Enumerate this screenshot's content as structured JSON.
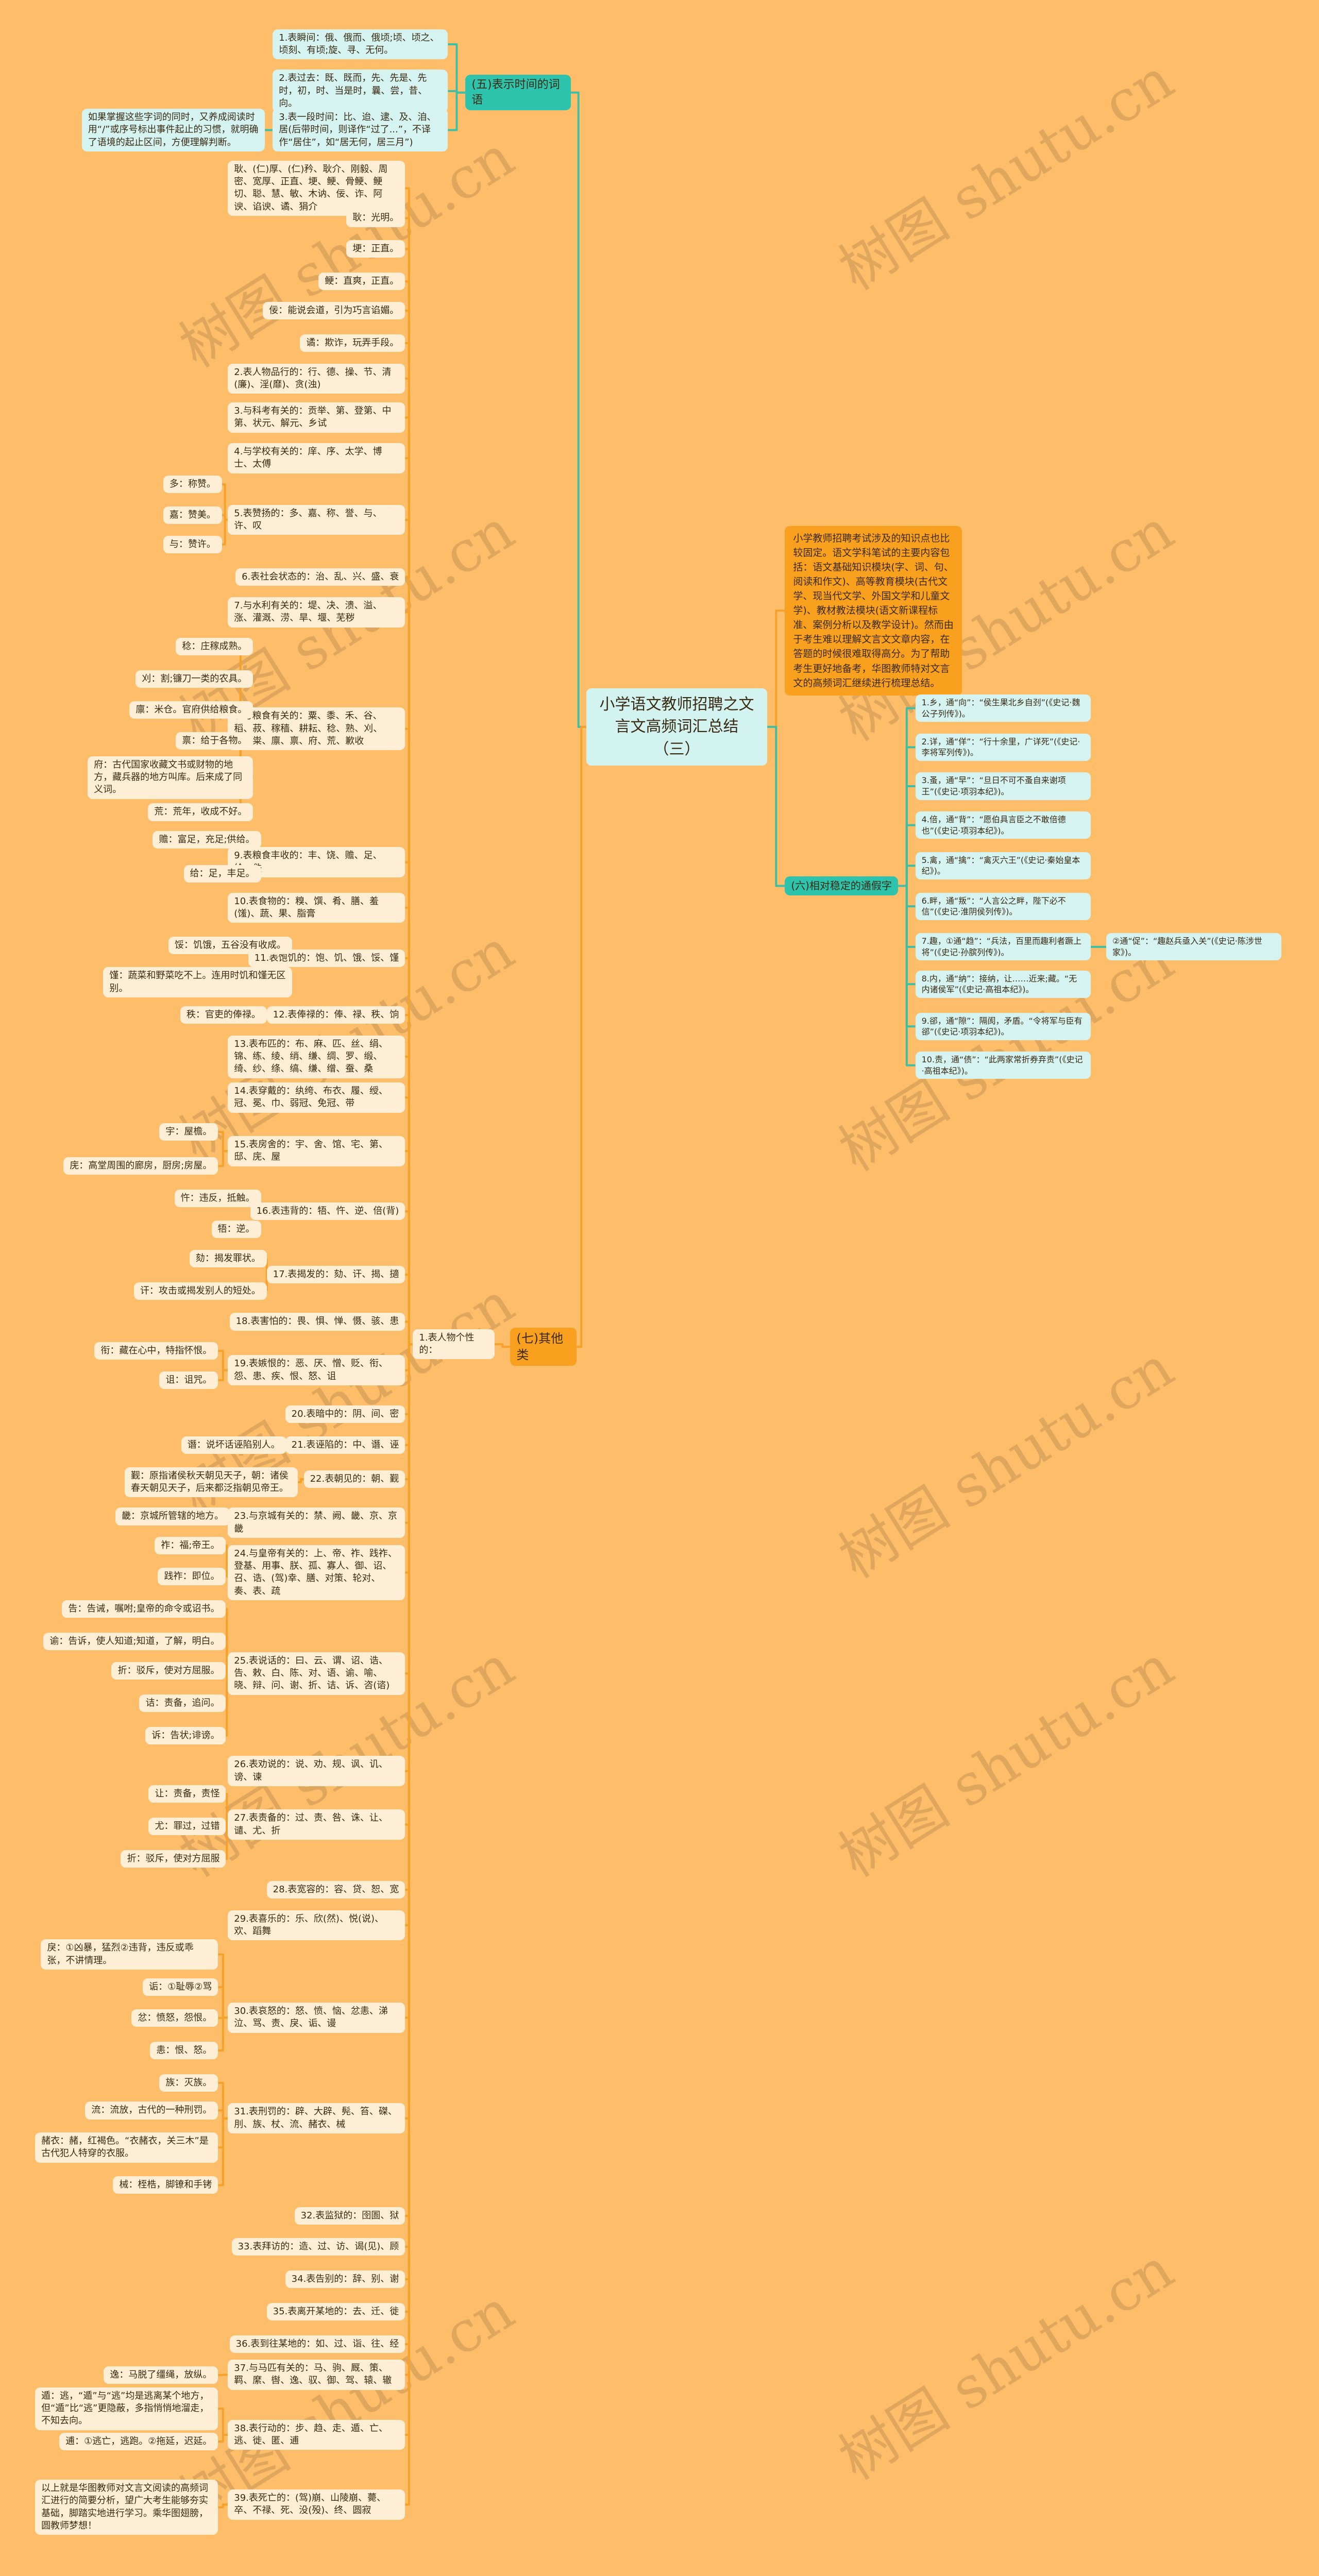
{
  "title": "小学语文教师招聘之文言文高频词汇总结（三）",
  "intro": "小学教师招聘考试涉及的知识点也比较固定。语文学科笔试的主要内容包括：语文基础知识模块(字、词、句、阅读和作文)、高等教育模块(古代文学、现当代文学、外国文学和儿童文学)、教材教法模块(语文新课程标准、案例分析以及教学设计)。然而由于考生难以理解文言文文章内容，在答题的时候很难取得高分。为了帮助考生更好地备考，华图教师特对文言文的高频词汇继续进行梳理总结。",
  "watermark": "树图 shutu.cn",
  "colors": {
    "background": "#FEBD69",
    "teal": "#2EC3AC",
    "orange": "#F9A11E",
    "cyan_node": "#D5F3F0",
    "cream_node": "#FDEED5",
    "teal_line": "#3DBFA5",
    "orange_line": "#F6A129"
  },
  "five": {
    "label": "(五)表示时间的词语",
    "items": [
      "1.表瞬间：俄、俄而、俄顷;顷、顷之、顷刻、有顷;旋、寻、无何。",
      "2.表过去：既、既而，先、先是、先时，初，时、当是时，曩、尝，昔、向。",
      "3.表一段时间：比、迨、逮、及、洎、居(后带时间，则译作“过了...”，不译作“居住”，如“居无何，居三月”)"
    ],
    "note": "如果掌握这些字词的同时，又养成阅读时用“/”或序号标出事件起止的习惯，就明确了语境的起止区间，方便理解判断。"
  },
  "six": {
    "label": "(六)相对稳定的通假字",
    "items": [
      "1.乡，通“向”：“侯生果北乡自刭”(《史记·魏公子列传》)。",
      "2.详，通“佯”：“行十余里，广详死”(《史记·李将军列传》)。",
      "3.蚤，通“早”：“旦日不可不蚤自来谢项王”(《史记·项羽本纪》)。",
      "4.倍，通“背”：“愿伯具言臣之不敢倍德也”(《史记·项羽本纪》)。",
      "5.禽，通“擒”：“禽灭六王”(《史记·秦始皇本纪》)。",
      "6.畔，通“叛”：“人言公之畔，陛下必不信”(《史记·淮阴侯列传》)。",
      "7.趣，①通“趋”：“兵法，百里而趣利者蹶上将”(《史记·孙膑列传》)。",
      "8.内，通“纳”：接纳，让……近来;藏。“无内诸侯军”(《史记·高祖本纪》)。",
      "9.郤，通“隙”：隔阂，矛盾。“令将军与臣有郤”(《史记·项羽本纪》)。",
      "10.责，通“债”：“此两家常折券弃责”(《史记·高祖本纪》)。"
    ],
    "extra": "②通“促”：“趣赵兵亟入关”(《史记·陈涉世家》)。"
  },
  "seven": {
    "label": "(七)其他类",
    "sub": "1.表人物个性的：",
    "items": [
      {
        "text": "耿、(仁)厚、(仁)矜、耿介、刚毅、周密、宽厚、正直、埂、鲠、骨鲠、鲠切、聪、慧、敏、木讷、佞、诈、阿谀、谄谀、谲、狷介",
        "children": []
      },
      {
        "text": "耿：光明。",
        "children": []
      },
      {
        "text": "埂：正直。",
        "children": []
      },
      {
        "text": "鲠：直爽，正直。",
        "children": []
      },
      {
        "text": "佞：能说会道，引为巧言谄媚。",
        "children": []
      },
      {
        "text": "谲：欺诈，玩弄手段。",
        "children": []
      },
      {
        "text": "2.表人物品行的：行、德、操、节、清(廉)、淫(靡)、贪(浊)",
        "children": []
      },
      {
        "text": "3.与科考有关的：贡举、第、登第、中第、状元、解元、乡试",
        "children": []
      },
      {
        "text": "4.与学校有关的：庠、序、太学、博士、太傅",
        "children": []
      },
      {
        "text": "5.表赞扬的：多、嘉、称、誉、与、许、叹",
        "children": [
          "多：称赞。",
          "嘉：赞美。",
          "与：赞许。"
        ]
      },
      {
        "text": "6.表社会状态的：治、乱、兴、盛、衰",
        "children": []
      },
      {
        "text": "7.与水利有关的：堤、决、溃、溢、涨、灌溉、涝、旱、堰、芜秽",
        "children": []
      },
      {
        "text": "8.与粮食有关的：粟、黍、禾、谷、稻、菽、稼穑、耕耘、稔、熟、刈、籴、粜、廪、禀、府、荒、歉收",
        "children": [
          "稔：庄稼成熟。",
          "刈：割;镰刀一类的农具。",
          "廪：米仓。官府供给粮食。",
          "禀：给于各物。",
          "府：古代国家收藏文书或财物的地方，藏兵器的地方叫库。后来成了同义词。",
          "荒：荒年，收成不好。"
        ]
      },
      {
        "text": "9.表粮食丰收的：丰、饶、赡、足、给、佚",
        "children": [
          "赡：富足，充足;供给。",
          "给：足，丰足。"
        ]
      },
      {
        "text": "10.表食物的：糗、馔、肴、膳、羞(馐)、蔬、果、脂膏",
        "children": []
      },
      {
        "text": "11.表饱饥的：饱、饥、饿、馁、馑",
        "children": [
          "馁：饥饿，五谷没有收成。",
          "馑：蔬菜和野菜吃不上。连用时饥和馑无区别。"
        ]
      },
      {
        "text": "12.表俸禄的：俸、禄、秩、饷",
        "children": [
          "秩：官吏的俸禄。"
        ]
      },
      {
        "text": "13.表布匹的：布、麻、匹、丝、绢、锦、练、绫、绡、缣、绸、罗、缎、绮、纱、绦、缟、缣、缯、蚕、桑",
        "children": []
      },
      {
        "text": "14.表穿戴的：纨绔、布衣、履、绶、冠、冕、巾、弱冠、免冠、带",
        "children": []
      },
      {
        "text": "15.表房舍的：宇、舍、馆、宅、第、邸、庑、屋",
        "children": [
          "宇：屋檐。",
          "庑：高堂周围的廊房，厨房;房屋。"
        ]
      },
      {
        "text": "16.表违背的：牾、忤、逆、倍(背)",
        "children": [
          "忤：违反，抵触。",
          "牾：逆。"
        ]
      },
      {
        "text": "17.表揭发的：劾、讦、揭、擿",
        "children": [
          "劾：揭发罪状。",
          "讦：攻击或揭发别人的短处。"
        ]
      },
      {
        "text": "18.表害怕的：畏、惧、惮、慑、骇、患",
        "children": []
      },
      {
        "text": "19.表嫉恨的：恶、厌、憎、贬、衔、怨、患、疾、恨、怒、诅",
        "children": [
          "衔：藏在心中，特指怀恨。",
          "诅：诅咒。"
        ]
      },
      {
        "text": "20.表暗中的：阴、间、密",
        "children": []
      },
      {
        "text": "21.表诬陷的：中、谮、诬",
        "children": [
          "谮：说坏话诬陷别人。"
        ]
      },
      {
        "text": "22.表朝见的：朝、觐",
        "children": [
          "觐：原指诸侯秋天朝见天子，朝：诸侯春天朝见天子，后来都泛指朝见帝王。"
        ]
      },
      {
        "text": "23.与京城有关的：禁、阙、畿、京、京畿",
        "children": [
          "畿：京城所管辖的地方。"
        ]
      },
      {
        "text": "24.与皇帝有关的：上、帝、祚、践祚、登基、用事、朕、孤、寡人、御、诏、召、诰、(驾)幸、膳、对策、轮对、奏、表、疏",
        "children": [
          "祚：福;帝王。",
          "践祚：即位。"
        ]
      },
      {
        "text": "25.表说话的：曰、云、谓、诏、诰、告、敕、白、陈、对、语、谕、喻、晓、辩、问、谢、折、诘、诉、咨(谘)",
        "children": [
          "告：告诫，嘱咐;皇帝的命令或诏书。",
          "谕：告诉，使人知道;知道，了解，明白。",
          "折：驳斥，使对方屈服。",
          "诘：责备，追问。",
          "诉：告状;诽谤。"
        ]
      },
      {
        "text": "26.表劝说的：说、劝、规、讽、讥、谤、谏",
        "children": []
      },
      {
        "text": "27.表责备的：过、责、咎、诛、让、谴、尤、折",
        "children": [
          "让：责备，责怪",
          "尤：罪过，过错",
          "折：驳斥，使对方屈服"
        ]
      },
      {
        "text": "28.表宽容的：容、贷、恕、宽",
        "children": []
      },
      {
        "text": "29.表喜乐的：乐、欣(然)、悦(说)、欢、蹈舞",
        "children": []
      },
      {
        "text": "30.表哀怒的：怒、愤、恼、忿恚、涕泣、骂、责、戾、诟、谩",
        "children": [
          "戾：①凶暴，猛烈②违背，违反或乖张，不讲情理。",
          "诟：①耻辱②骂",
          "忿：愤怒，怨恨。",
          "恚：恨、怒。"
        ]
      },
      {
        "text": "31.表刑罚的：辟、大辟、髡、笞、磔、刖、族、杖、流、赭衣、械",
        "children": [
          "族：灭族。",
          "流：流放，古代的一种刑罚。",
          "赭衣：赭，红褐色。“衣赭衣，关三木”是古代犯人特穿的衣服。",
          "械：桎梏，脚镣和手铐"
        ]
      },
      {
        "text": "32.表监狱的：囹圄、狱",
        "children": []
      },
      {
        "text": "33.表拜访的：造、过、访、谒(见)、顾",
        "children": []
      },
      {
        "text": "34.表告别的：辞、别、谢",
        "children": []
      },
      {
        "text": "35.表离开某地的：去、迁、徙",
        "children": []
      },
      {
        "text": "36.表到往某地的：如、过、诣、往、经",
        "children": []
      },
      {
        "text": "37.与马匹有关的：马、驹、厩、策、羁、縻、辔、逸、驭、御、驾、辕、辙",
        "children": [
          "逸：马脱了缰绳，放纵。"
        ]
      },
      {
        "text": "38.表行动的：步、趋、走、遁、亡、逃、徙、匿、逋",
        "children": [
          "遁：逃，“遁”与“逃”均是逃离某个地方，但“遁”比“逃”更隐蔽，多指悄悄地溜走，不知去向。",
          "逋：①逃亡，逃跑。②拖延，迟延。"
        ]
      },
      {
        "text": "39.表死亡的：(驾)崩、山陵崩、薨、卒、不禄、死、没(殁)、终、圆寂",
        "children": [
          "以上就是华图教师对文言文阅读的高频词汇进行的简要分析，望广大考生能够夯实基础，脚踏实地进行学习。乘华图翅膀，圆教师梦想！"
        ]
      }
    ]
  }
}
